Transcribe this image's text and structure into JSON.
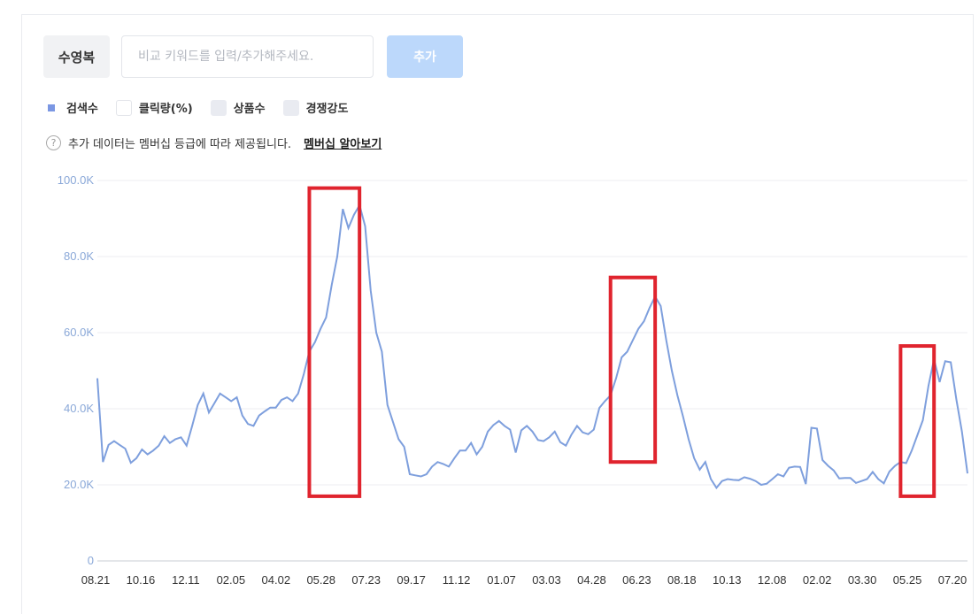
{
  "controls": {
    "keyword": "수영복",
    "input_placeholder": "비교 키워드를 입력/추가해주세요.",
    "add_label": "추가"
  },
  "legend": [
    {
      "label": "검색수",
      "active": true,
      "color": "#7b97e3"
    },
    {
      "label": "클릭량(%)",
      "active": false,
      "color": "#ffffff"
    },
    {
      "label": "상품수",
      "active": false,
      "color": "#e9ebf1"
    },
    {
      "label": "경쟁강도",
      "active": false,
      "color": "#e9ebf1"
    }
  ],
  "notice": {
    "icon": "question-icon",
    "text": "추가 데이터는 멤버십 등급에 따라 제공됩니다.",
    "link": "멤버십 알아보기"
  },
  "colors": {
    "line": "#7e9fdd",
    "highlight": "#e0242e"
  },
  "chart_data": {
    "type": "line",
    "series": [
      {
        "name": "검색수",
        "values": [
          48000,
          26000,
          30500,
          31500,
          30500,
          29500,
          25800,
          27000,
          29300,
          28000,
          29000,
          30300,
          32800,
          31000,
          32000,
          32500,
          30300,
          35500,
          41000,
          44000,
          39000,
          41500,
          44000,
          43000,
          42000,
          43000,
          38200,
          36000,
          35500,
          38200,
          39300,
          40300,
          40300,
          42300,
          43000,
          42000,
          44000,
          49000,
          55000,
          57500,
          61000,
          64000,
          72500,
          80000,
          92500,
          87500,
          91000,
          93500,
          88000,
          71000,
          60000,
          55000,
          41000,
          36500,
          32000,
          30000,
          22800,
          22500,
          22200,
          22800,
          24800,
          26000,
          25500,
          24800,
          27000,
          29000,
          29000,
          31000,
          28000,
          30000,
          34000,
          35700,
          36800,
          35500,
          34500,
          28500,
          34300,
          35500,
          34000,
          31800,
          31500,
          32500,
          34000,
          31200,
          30300,
          33200,
          35500,
          33800,
          33300,
          34500,
          40200,
          42000,
          43500,
          48000,
          53500,
          55000,
          58000,
          61000,
          63000,
          66500,
          69500,
          67000,
          58000,
          50000,
          43500,
          38000,
          32000,
          27000,
          24000,
          26000,
          21500,
          19200,
          21000,
          21500,
          21300,
          21200,
          22000,
          21600,
          21000,
          20000,
          20300,
          21500,
          22800,
          22200,
          24500,
          24800,
          24700,
          20200,
          35000,
          34800,
          26500,
          25000,
          23800,
          21700,
          21800,
          21800,
          20500,
          21000,
          21500,
          23400,
          21500,
          20400,
          23500,
          25000,
          26000,
          25700,
          29000,
          33000,
          37000,
          46000,
          53000,
          47000,
          52500,
          52200,
          42500,
          34000,
          23000
        ]
      }
    ],
    "x_tick_labels": [
      "08.21",
      "10.16",
      "12.11",
      "02.05",
      "04.02",
      "05.28",
      "07.23",
      "09.17",
      "11.12",
      "01.07",
      "03.03",
      "04.28",
      "06.23",
      "08.18",
      "10.13",
      "12.08",
      "02.02",
      "03.30",
      "05.25",
      "07.20"
    ],
    "y_tick_labels": [
      "0",
      "20.0K",
      "40.0K",
      "60.0K",
      "80.0K",
      "100.0K"
    ],
    "y_ticks": [
      0,
      20000,
      40000,
      60000,
      80000,
      100000
    ],
    "ylim": [
      0,
      100000
    ],
    "grid": true,
    "highlights": [
      {
        "x_index_range": [
          38,
          47
        ],
        "y_range": [
          17000,
          98000
        ]
      },
      {
        "x_index_range": [
          92,
          100
        ],
        "y_range": [
          26000,
          74500
        ]
      },
      {
        "x_index_range": [
          144,
          150
        ],
        "y_range": [
          17000,
          56500
        ]
      }
    ]
  }
}
